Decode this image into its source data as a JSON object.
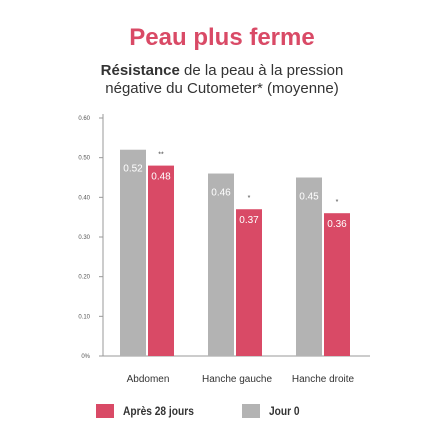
{
  "header": {
    "title": "Peau plus ferme",
    "subtitle_bold": "Résistance",
    "subtitle_rest": " de la peau à la pression",
    "subtitle_line2": "négative du Cutometer* (moyenne)"
  },
  "colors": {
    "title": "#d94a66",
    "jour0": "#b3b3b3",
    "apres28": "#d94a66",
    "label_on_bar": "#ffffff"
  },
  "chart_data": {
    "type": "bar",
    "categories": [
      "Abdomen",
      "Hanche gauche",
      "Hanche droite"
    ],
    "series": [
      {
        "name": "Jour 0",
        "values": [
          0.52,
          0.46,
          0.45
        ],
        "labels": [
          "0.52",
          "0.46",
          "0.45"
        ]
      },
      {
        "name": "Après 28 jours",
        "values": [
          0.48,
          0.37,
          0.36
        ],
        "labels": [
          "0.48",
          "0.37",
          "0.36"
        ]
      }
    ],
    "significance": [
      "**",
      "*",
      "*"
    ],
    "ylim": [
      0,
      0.6
    ],
    "yticks": [
      0,
      0.1,
      0.2,
      0.3,
      0.4,
      0.5,
      0.6
    ],
    "ytick_labels": [
      "0%",
      "0.10",
      "0.20",
      "0.30",
      "0.40",
      "0.50",
      "0.60"
    ],
    "grid": false,
    "legend_position": "bottom"
  },
  "legend": [
    {
      "name": "Après 28 jours",
      "color": "#d94a66"
    },
    {
      "name": "Jour 0",
      "color": "#b3b3b3"
    }
  ]
}
